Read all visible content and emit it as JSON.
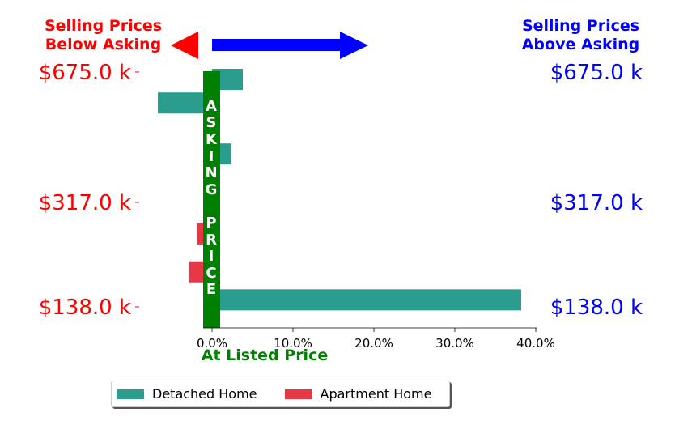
{
  "header": {
    "left_label": "Selling Prices\nBelow Asking",
    "right_label": "Selling Prices\nAbove Asking",
    "left_color": "#ff0000",
    "right_color": "#0000ff"
  },
  "center_band": {
    "label": "ASKINGPRICE",
    "color": "#008000"
  },
  "legend": {
    "items": [
      {
        "label": "Detached Home",
        "color": "#2a9d8f"
      },
      {
        "label": "Apartment Home",
        "color": "#e63946"
      }
    ]
  },
  "chart_data": {
    "type": "bar",
    "orientation": "horizontal",
    "xlabel": "At Listed Price",
    "xlabel_color": "#008000",
    "xlim": [
      -9.5,
      42.5
    ],
    "xticks": [
      "0.0%",
      "10.0%",
      "20.0%",
      "30.0%",
      "40.0%"
    ],
    "xtick_values": [
      0,
      10,
      20,
      30,
      40
    ],
    "y_tick_labels": [
      "$675.0 k",
      "$317.0 k",
      "$138.0 k"
    ],
    "y_tick_levels": [
      675,
      317,
      138
    ],
    "series": [
      {
        "name": "Detached Home",
        "color": "#2a9d8f",
        "bars": [
          {
            "level": 655,
            "value": 3.8
          },
          {
            "level": 590,
            "value": -6.7
          },
          {
            "level": 450,
            "value": 2.4
          },
          {
            "level": 150,
            "value": 38.2
          }
        ]
      },
      {
        "name": "Apartment Home",
        "color": "#e63946",
        "bars": [
          {
            "level": 263,
            "value": -1.9
          },
          {
            "level": 198,
            "value": -2.9
          }
        ]
      }
    ]
  }
}
